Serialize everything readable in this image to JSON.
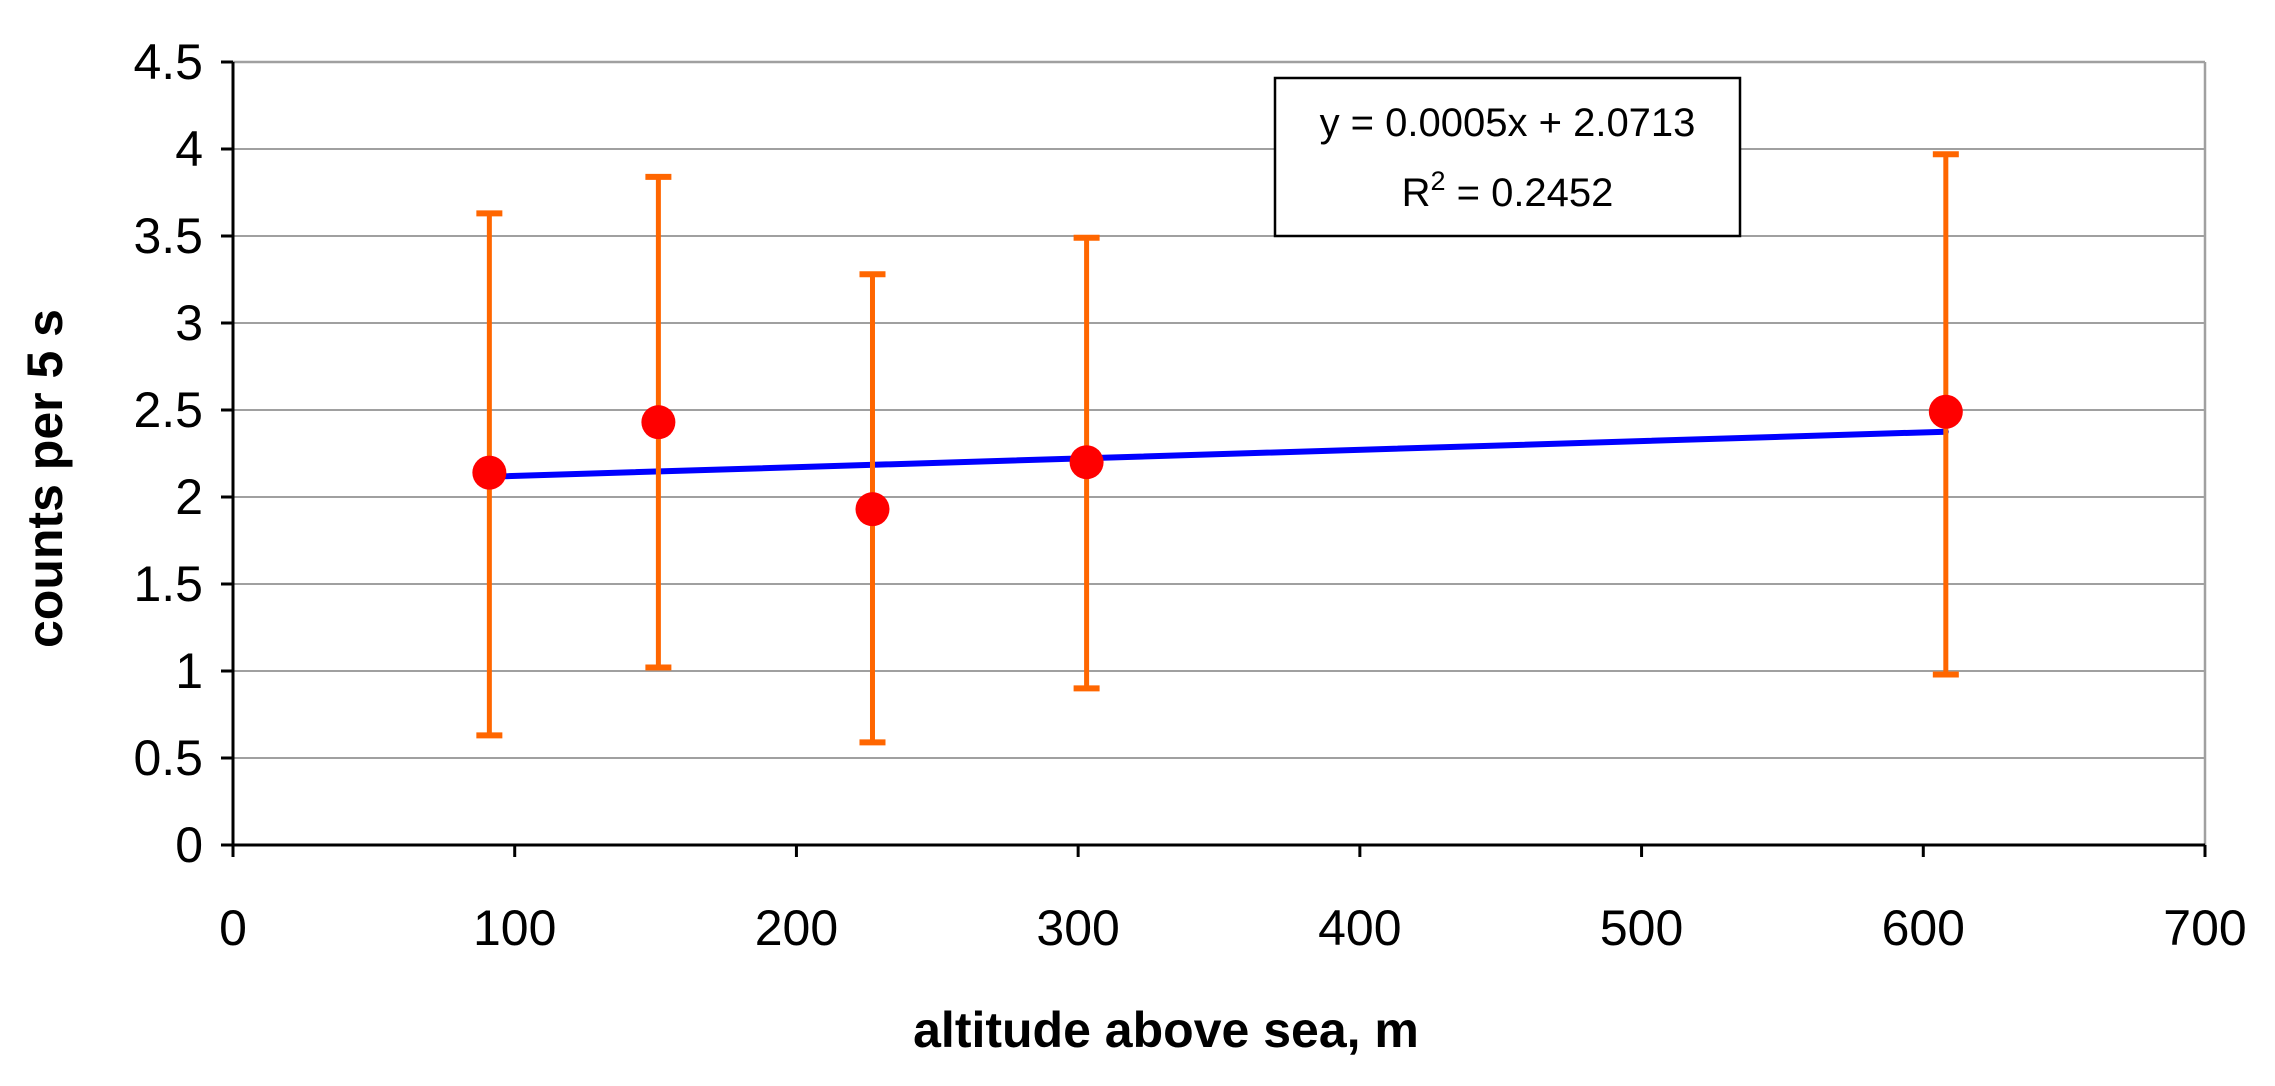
{
  "chart_data": {
    "type": "scatter",
    "title": "",
    "xlabel": "altitude above sea, m",
    "ylabel": "counts per 5 s",
    "xlim": [
      0,
      700
    ],
    "ylim": [
      0,
      4.5
    ],
    "xticks": [
      0,
      100,
      200,
      300,
      400,
      500,
      600,
      700
    ],
    "yticks": [
      0,
      0.5,
      1,
      1.5,
      2,
      2.5,
      3,
      3.5,
      4,
      4.5
    ],
    "x_tick_labels": [
      "0",
      "100",
      "200",
      "300",
      "400",
      "500",
      "600",
      "700"
    ],
    "y_tick_labels": [
      "0",
      "0.5",
      "1",
      "1.5",
      "2",
      "2.5",
      "3",
      "3.5",
      "4",
      "4.5"
    ],
    "grid": "horizontal",
    "series": [
      {
        "points": [
          {
            "x": 91,
            "y": 2.14,
            "err_low": 0.63,
            "err_high": 3.63
          },
          {
            "x": 151,
            "y": 2.43,
            "err_low": 1.02,
            "err_high": 3.84
          },
          {
            "x": 227,
            "y": 1.93,
            "err_low": 0.59,
            "err_high": 3.28
          },
          {
            "x": 303,
            "y": 2.2,
            "err_low": 0.9,
            "err_high": 3.49
          },
          {
            "x": 608,
            "y": 2.49,
            "err_low": 0.98,
            "err_high": 3.97
          }
        ]
      }
    ],
    "trendline": {
      "slope": 0.0005,
      "intercept": 2.0713,
      "x_range": [
        91,
        608
      ],
      "equation_label": "y = 0.0005x + 2.0713",
      "r2_prefix": "R",
      "r2_superscript": "2",
      "r2_value": " = 0.2452",
      "legend_placement": "top-right"
    },
    "colors": {
      "marker": "#ff0000",
      "error_bar": "#ff6600",
      "trendline": "#0000ff",
      "grid": "#a0a0a0",
      "axis": "#000000",
      "frame": "#a0a0a0"
    }
  }
}
